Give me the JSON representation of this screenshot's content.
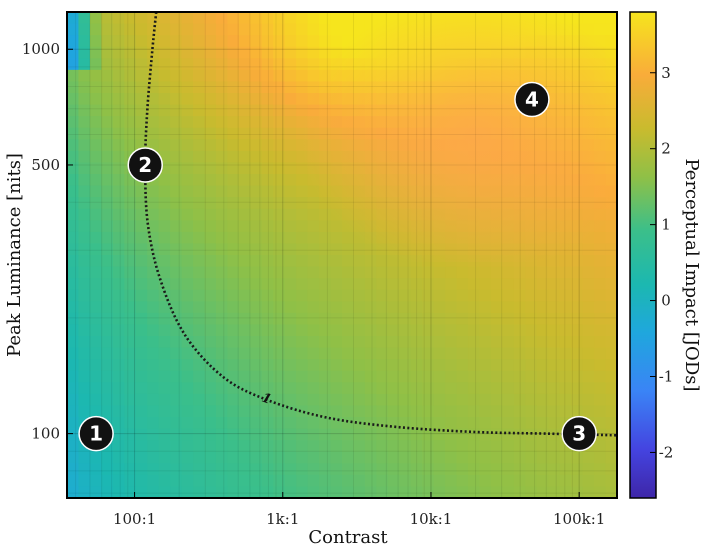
{
  "chart_data": {
    "type": "heatmap",
    "title": "",
    "xlabel": "Contrast",
    "ylabel": "Peak Luminance [nits]",
    "x_scale": "log",
    "y_scale": "log",
    "xlim": [
      35,
      180000
    ],
    "ylim": [
      68,
      1250
    ],
    "x_ticks": [
      {
        "value": 100,
        "label": "100:1"
      },
      {
        "value": 1000,
        "label": "1k:1"
      },
      {
        "value": 10000,
        "label": "10k:1"
      },
      {
        "value": 100000,
        "label": "100k:1"
      }
    ],
    "y_ticks": [
      {
        "value": 100,
        "label": "100"
      },
      {
        "value": 500,
        "label": "500"
      },
      {
        "value": 1000,
        "label": "1000"
      }
    ],
    "colorbar": {
      "label": "Perceptual Impact [JODs]",
      "range": [
        -2.6,
        3.8
      ],
      "ticks": [
        -2,
        -1,
        0,
        1,
        2,
        3
      ],
      "tick_labels": [
        "-2",
        "-1",
        "0",
        "1",
        "2",
        "3"
      ],
      "colormap": "parula"
    },
    "grid": true,
    "contours": [
      {
        "level": 1,
        "label": "1",
        "style": "dotted",
        "points": [
          {
            "x": 140,
            "y": 1250
          },
          {
            "x": 132,
            "y": 1000
          },
          {
            "x": 122,
            "y": 700
          },
          {
            "x": 118,
            "y": 500
          },
          {
            "x": 123,
            "y": 350
          },
          {
            "x": 150,
            "y": 250
          },
          {
            "x": 220,
            "y": 180
          },
          {
            "x": 400,
            "y": 140
          },
          {
            "x": 800,
            "y": 122
          },
          {
            "x": 2000,
            "y": 110
          },
          {
            "x": 6000,
            "y": 104
          },
          {
            "x": 20000,
            "y": 101
          },
          {
            "x": 60000,
            "y": 100
          },
          {
            "x": 180000,
            "y": 99
          }
        ]
      }
    ],
    "markers": [
      {
        "label": "1",
        "x": 55,
        "y": 100
      },
      {
        "label": "2",
        "x": 118,
        "y": 500
      },
      {
        "label": "3",
        "x": 100000,
        "y": 100
      },
      {
        "label": "4",
        "x": 48000,
        "y": 740
      }
    ]
  }
}
